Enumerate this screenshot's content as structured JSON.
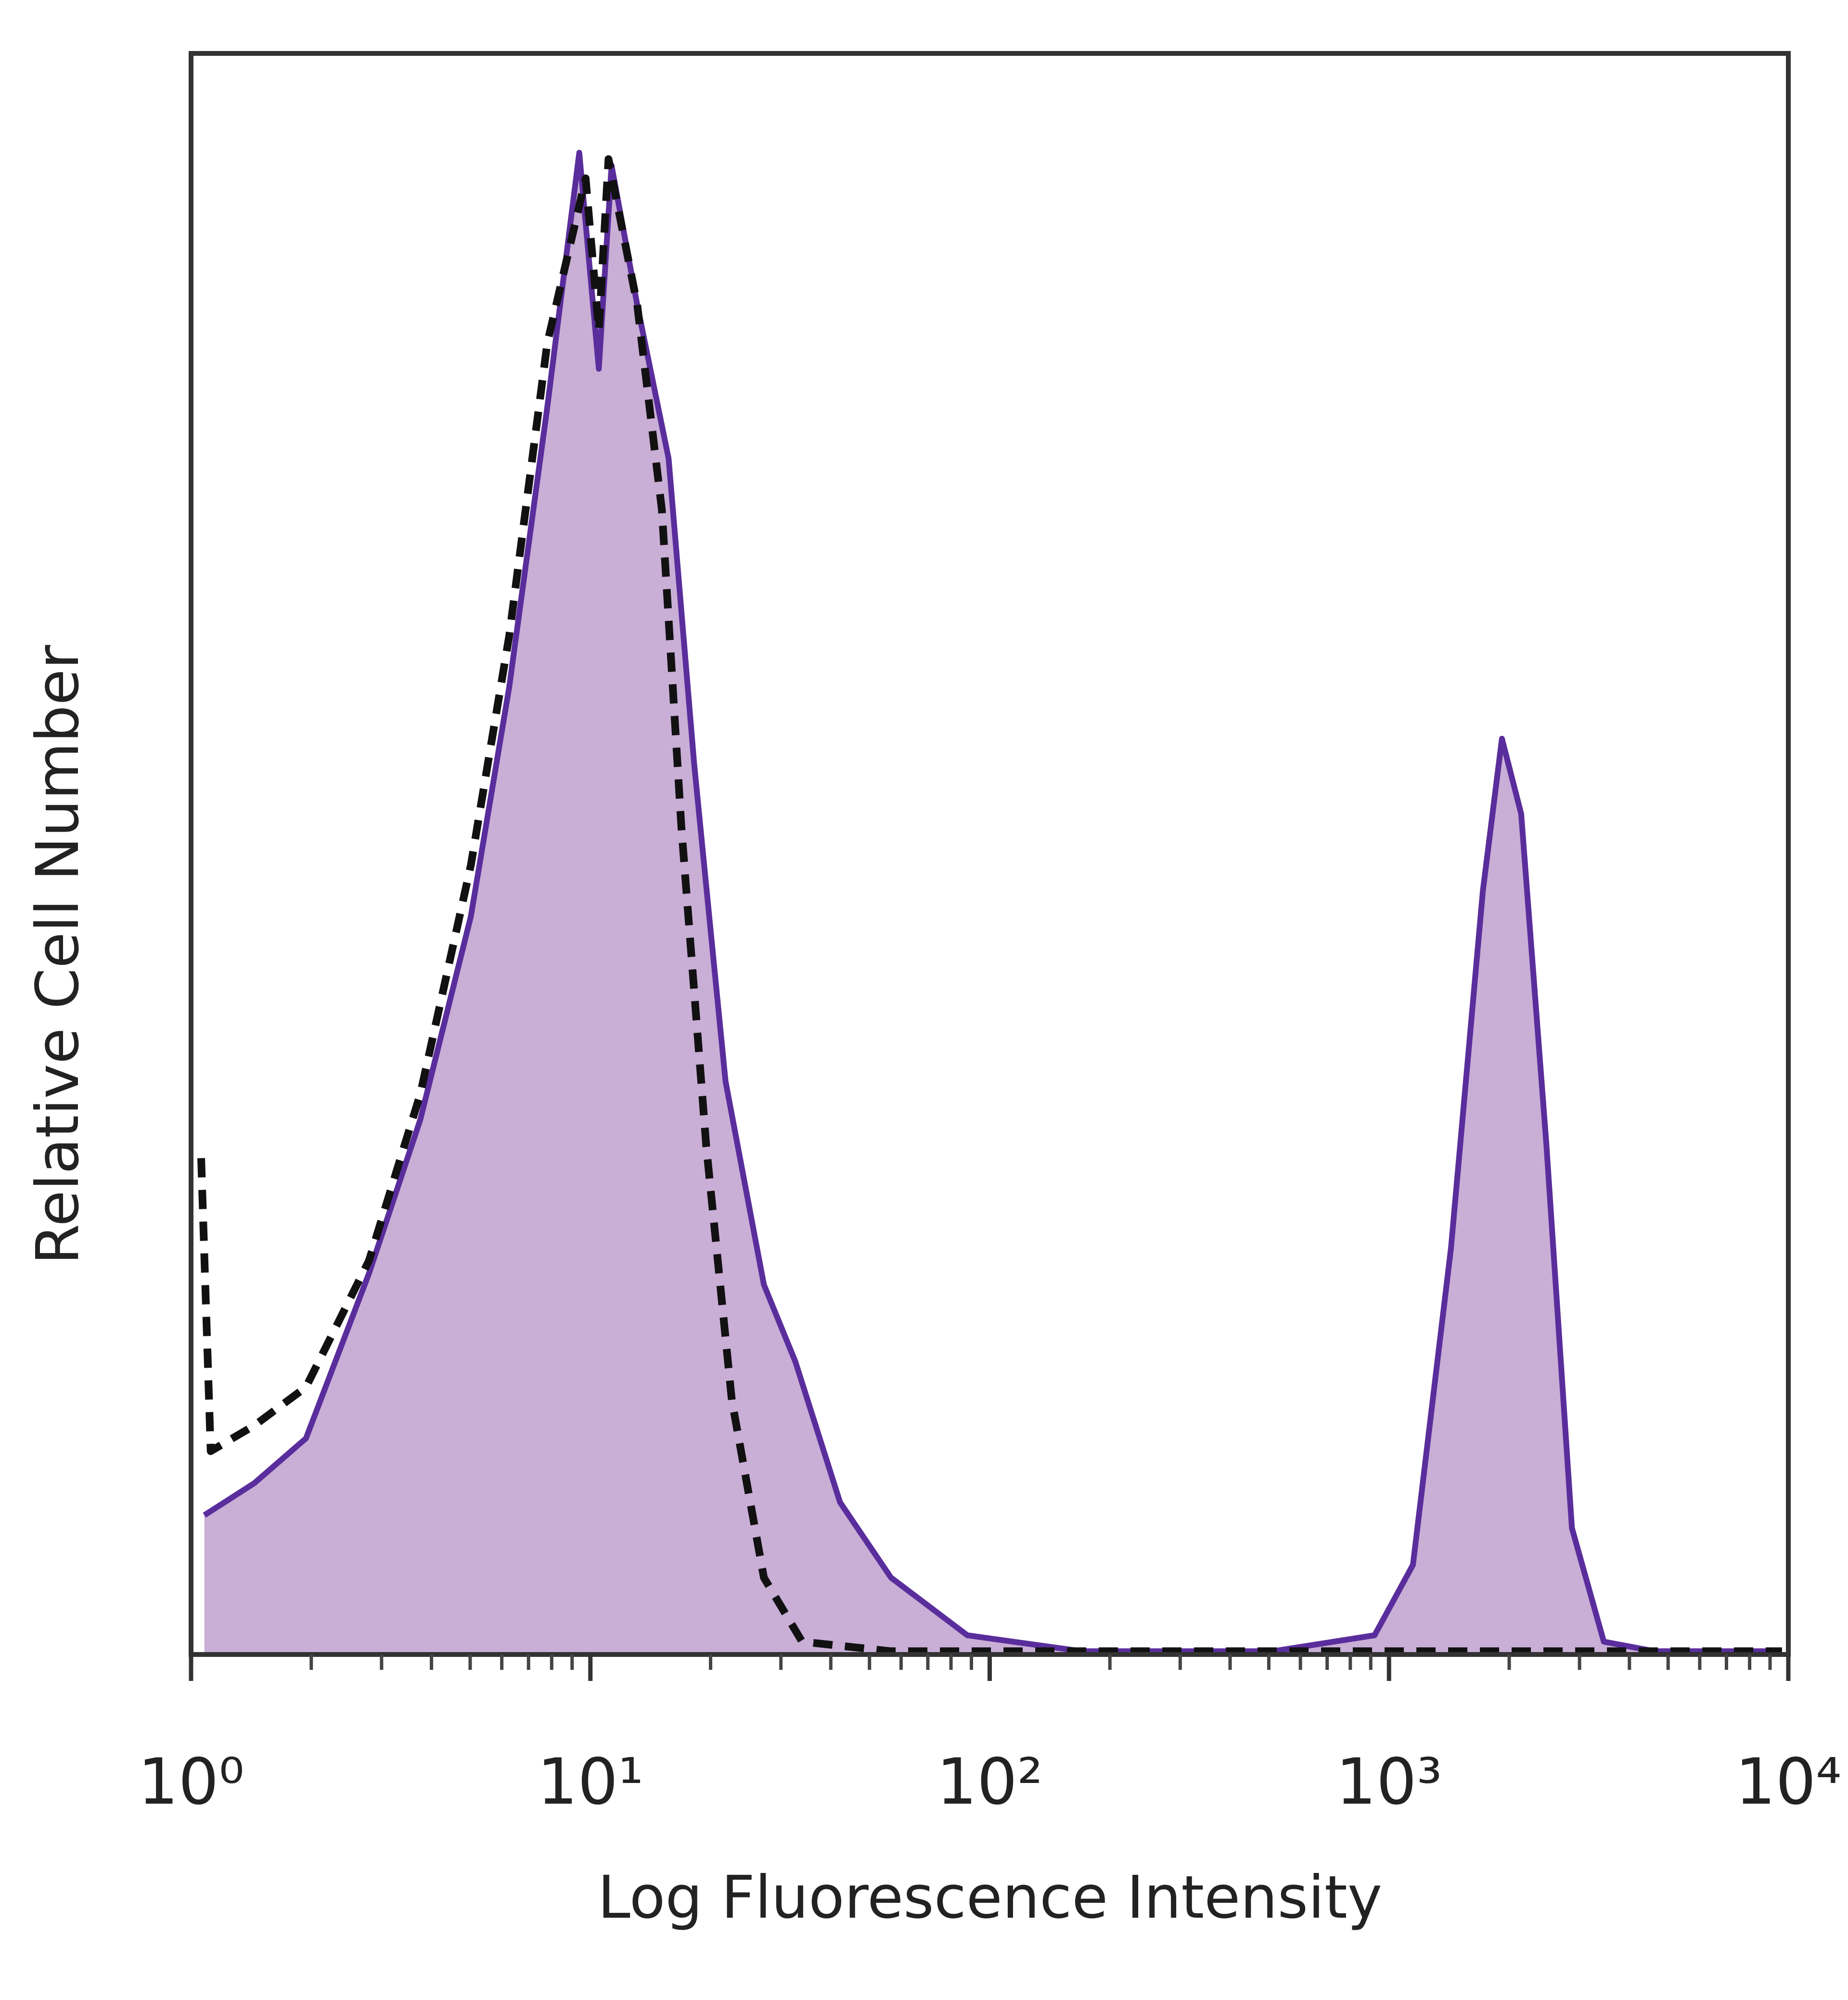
{
  "chart_data": {
    "type": "line",
    "x_label": "Log Fluorescence Intensity",
    "y_label": "Relative Cell Number",
    "xscale": "log",
    "xlim": [
      1,
      10000
    ],
    "xticks": [
      {
        "value": 1,
        "label": "10⁰"
      },
      {
        "value": 10,
        "label": "10¹"
      },
      {
        "value": 100,
        "label": "10²"
      },
      {
        "value": 1000,
        "label": "10³"
      },
      {
        "value": 10000,
        "label": "10⁴"
      }
    ],
    "xminorticks": [
      2,
      3,
      4,
      5,
      6,
      7,
      8,
      9,
      20,
      30,
      40,
      50,
      60,
      70,
      80,
      90,
      200,
      300,
      400,
      500,
      600,
      700,
      800,
      900,
      2000,
      3000,
      4000,
      5000,
      6000,
      7000,
      8000,
      9000
    ],
    "ylim": [
      0,
      100
    ],
    "series": [
      {
        "color": "#5a2d9c",
        "fill": "#c9aed6",
        "dash": false,
        "x": [
          1.08,
          1.44,
          1.94,
          2.79,
          3.75,
          5.02,
          6.26,
          7.8,
          9.38,
          10.5,
          11.3,
          13.1,
          15.7,
          18.2,
          21.8,
          27.2,
          32.6,
          42.2,
          56.6,
          87.9,
          170,
          512,
          920,
          1148,
          1430,
          1718,
          1918,
          2143,
          2479,
          2871,
          3451,
          4624,
          9640
        ],
        "values": [
          8.7,
          10.7,
          13.5,
          23.8,
          33.4,
          46.1,
          60.4,
          77.9,
          93.8,
          80.3,
          93.0,
          84.3,
          74.7,
          55.6,
          35.8,
          23.1,
          18.3,
          9.5,
          4.8,
          1.2,
          0.2,
          0.2,
          1.2,
          5.6,
          25.4,
          47.7,
          57.2,
          52.5,
          31.8,
          7.9,
          0.8,
          0.2,
          0.2
        ]
      },
      {
        "color": "#111111",
        "fill": null,
        "dash": true,
        "x": [
          1.06,
          1.12,
          1.44,
          1.94,
          2.79,
          3.75,
          5.02,
          6.26,
          7.8,
          9.73,
          10.5,
          11.1,
          13.1,
          15.1,
          16.9,
          19.5,
          22.6,
          27.2,
          33.9,
          56.6,
          9640
        ],
        "values": [
          31,
          12.7,
          14.3,
          16.7,
          24.6,
          35,
          49.3,
          63.6,
          81.9,
          92.2,
          82.7,
          93.4,
          84.3,
          71.5,
          51.7,
          31.8,
          15.9,
          4.8,
          0.8,
          0.2,
          0.2
        ]
      }
    ]
  }
}
